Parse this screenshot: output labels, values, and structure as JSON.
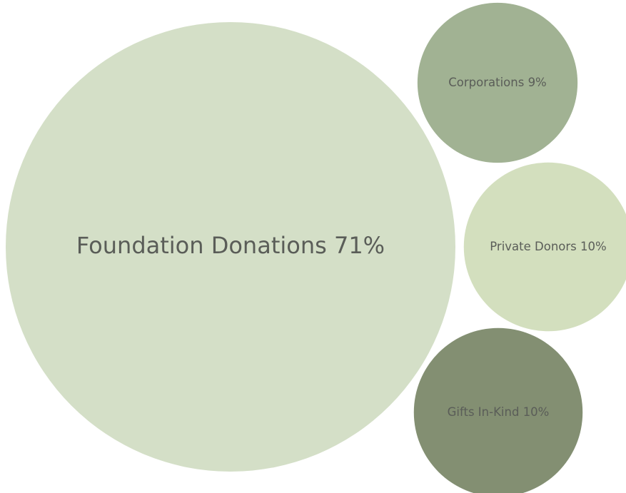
{
  "chart_data": {
    "type": "bubble",
    "categories": [
      "Foundation Donations",
      "Corporations",
      "Private Donors",
      "Gifts In-Kind"
    ],
    "values": [
      71,
      9,
      10,
      10
    ],
    "value_labels": [
      "71%",
      "9%",
      "10%",
      "10%"
    ],
    "colors": [
      "#d4dfc7",
      "#a1b293",
      "#d3dfbe",
      "#838f72"
    ]
  }
}
